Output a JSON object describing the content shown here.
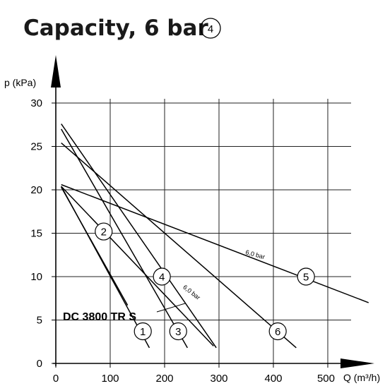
{
  "chart_data": {
    "type": "line",
    "title": "Capacity, 6 bar",
    "title_marker": "4",
    "xlabel": "Q (m³/h)",
    "ylabel": "p (kPa)",
    "xlim": [
      0,
      540
    ],
    "ylim": [
      0,
      32
    ],
    "xticks": [
      "0",
      "100",
      "200",
      "300",
      "400",
      "500"
    ],
    "yticks": [
      "0",
      "5",
      "10",
      "15",
      "20",
      "25",
      "30"
    ],
    "grid": true,
    "series": [
      {
        "name": "1",
        "x": [
          10,
          172
        ],
        "y": [
          20.4,
          1.8
        ],
        "marker_at": [
          160,
          3.7
        ]
      },
      {
        "name": "2",
        "x": [
          10,
          290
        ],
        "y": [
          20.4,
          2.0
        ],
        "marker_at": [
          88,
          15.2
        ]
      },
      {
        "name": "3",
        "x": [
          10,
          242
        ],
        "y": [
          27.0,
          1.8
        ],
        "marker_at": [
          225,
          3.7
        ]
      },
      {
        "name": "4",
        "x": [
          10,
          295
        ],
        "y": [
          27.6,
          1.8
        ],
        "marker_at": [
          195,
          10.0
        ]
      },
      {
        "name": "5",
        "x": [
          10,
          575
        ],
        "y": [
          20.6,
          7.0
        ],
        "marker_at": [
          460,
          10.0
        ]
      },
      {
        "name": "6",
        "x": [
          10,
          442
        ],
        "y": [
          25.4,
          1.8
        ],
        "marker_at": [
          408,
          3.7
        ]
      },
      {
        "name": "",
        "x": [
          10,
          132
        ],
        "y": [
          20.3,
          6.7
        ]
      }
    ],
    "annotations": [
      {
        "text": "6,0 bar",
        "x": 348,
        "y": 12.6,
        "angle": 15
      },
      {
        "text": "6,0 bar",
        "x": 233,
        "y": 8.7,
        "angle": 38
      }
    ],
    "model_label": "DC 3800 TR S"
  },
  "colors": {
    "ink": "#000000",
    "grid": "#222222",
    "title": "#1a1a1a"
  },
  "icons": [
    "y-axis-arrow-icon",
    "x-axis-arrow-icon"
  ]
}
